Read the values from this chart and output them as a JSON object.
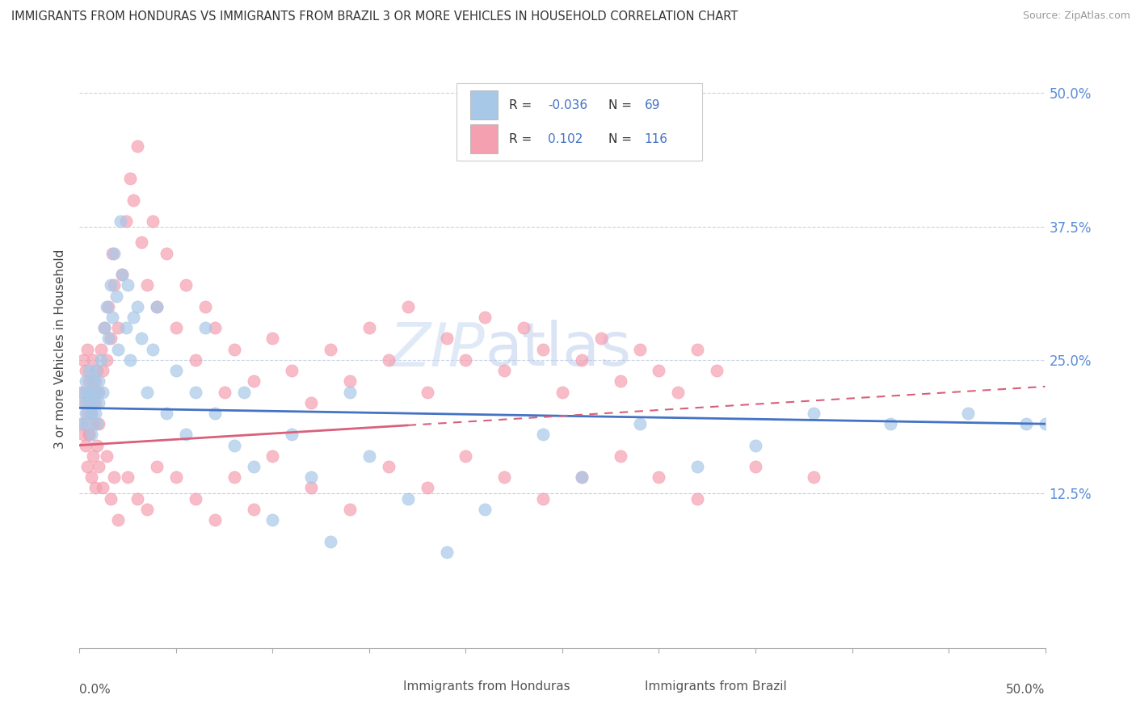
{
  "title": "IMMIGRANTS FROM HONDURAS VS IMMIGRANTS FROM BRAZIL 3 OR MORE VEHICLES IN HOUSEHOLD CORRELATION CHART",
  "source": "Source: ZipAtlas.com",
  "ylabel": "3 or more Vehicles in Household",
  "ytick_values": [
    0.125,
    0.25,
    0.375,
    0.5
  ],
  "ytick_labels": [
    "12.5%",
    "25.0%",
    "37.5%",
    "50.0%"
  ],
  "xmin": 0.0,
  "xmax": 0.5,
  "ymin": -0.02,
  "ymax": 0.54,
  "color_honduras": "#a8c8e8",
  "color_brazil": "#f4a0b0",
  "color_trend_honduras": "#4472c4",
  "color_trend_brazil": "#d9607a",
  "background_color": "#ffffff",
  "grid_color": "#c8d4e8",
  "honduras_x": [
    0.001,
    0.001,
    0.002,
    0.003,
    0.003,
    0.004,
    0.004,
    0.005,
    0.005,
    0.006,
    0.006,
    0.006,
    0.007,
    0.007,
    0.008,
    0.008,
    0.009,
    0.009,
    0.01,
    0.01,
    0.011,
    0.012,
    0.013,
    0.014,
    0.015,
    0.016,
    0.017,
    0.018,
    0.019,
    0.02,
    0.021,
    0.022,
    0.024,
    0.025,
    0.026,
    0.028,
    0.03,
    0.032,
    0.035,
    0.038,
    0.04,
    0.045,
    0.05,
    0.055,
    0.06,
    0.065,
    0.07,
    0.08,
    0.085,
    0.09,
    0.1,
    0.11,
    0.12,
    0.13,
    0.14,
    0.15,
    0.17,
    0.19,
    0.21,
    0.24,
    0.26,
    0.29,
    0.32,
    0.35,
    0.38,
    0.42,
    0.46,
    0.49,
    0.5
  ],
  "honduras_y": [
    0.21,
    0.19,
    0.22,
    0.2,
    0.23,
    0.19,
    0.22,
    0.21,
    0.24,
    0.2,
    0.22,
    0.18,
    0.23,
    0.21,
    0.2,
    0.24,
    0.22,
    0.19,
    0.21,
    0.23,
    0.25,
    0.22,
    0.28,
    0.3,
    0.27,
    0.32,
    0.29,
    0.35,
    0.31,
    0.26,
    0.38,
    0.33,
    0.28,
    0.32,
    0.25,
    0.29,
    0.3,
    0.27,
    0.22,
    0.26,
    0.3,
    0.2,
    0.24,
    0.18,
    0.22,
    0.28,
    0.2,
    0.17,
    0.22,
    0.15,
    0.1,
    0.18,
    0.14,
    0.08,
    0.22,
    0.16,
    0.12,
    0.07,
    0.11,
    0.18,
    0.14,
    0.19,
    0.15,
    0.17,
    0.2,
    0.19,
    0.2,
    0.19,
    0.19
  ],
  "brazil_x": [
    0.001,
    0.001,
    0.002,
    0.002,
    0.003,
    0.003,
    0.004,
    0.004,
    0.005,
    0.005,
    0.006,
    0.006,
    0.007,
    0.007,
    0.008,
    0.008,
    0.009,
    0.01,
    0.01,
    0.011,
    0.012,
    0.013,
    0.014,
    0.015,
    0.016,
    0.017,
    0.018,
    0.02,
    0.022,
    0.024,
    0.026,
    0.028,
    0.03,
    0.032,
    0.035,
    0.038,
    0.04,
    0.045,
    0.05,
    0.055,
    0.06,
    0.065,
    0.07,
    0.075,
    0.08,
    0.09,
    0.1,
    0.11,
    0.12,
    0.13,
    0.14,
    0.15,
    0.16,
    0.17,
    0.18,
    0.19,
    0.2,
    0.21,
    0.22,
    0.23,
    0.24,
    0.25,
    0.26,
    0.27,
    0.28,
    0.29,
    0.3,
    0.31,
    0.32,
    0.33,
    0.003,
    0.004,
    0.005,
    0.006,
    0.007,
    0.008,
    0.009,
    0.01,
    0.012,
    0.014,
    0.016,
    0.018,
    0.02,
    0.025,
    0.03,
    0.035,
    0.04,
    0.05,
    0.06,
    0.07,
    0.08,
    0.09,
    0.1,
    0.12,
    0.14,
    0.16,
    0.18,
    0.2,
    0.22,
    0.24,
    0.26,
    0.28,
    0.3,
    0.32,
    0.35,
    0.38
  ],
  "brazil_y": [
    0.22,
    0.19,
    0.25,
    0.18,
    0.24,
    0.21,
    0.2,
    0.26,
    0.23,
    0.18,
    0.22,
    0.2,
    0.25,
    0.19,
    0.23,
    0.21,
    0.24,
    0.22,
    0.19,
    0.26,
    0.24,
    0.28,
    0.25,
    0.3,
    0.27,
    0.35,
    0.32,
    0.28,
    0.33,
    0.38,
    0.42,
    0.4,
    0.45,
    0.36,
    0.32,
    0.38,
    0.3,
    0.35,
    0.28,
    0.32,
    0.25,
    0.3,
    0.28,
    0.22,
    0.26,
    0.23,
    0.27,
    0.24,
    0.21,
    0.26,
    0.23,
    0.28,
    0.25,
    0.3,
    0.22,
    0.27,
    0.25,
    0.29,
    0.24,
    0.28,
    0.26,
    0.22,
    0.25,
    0.27,
    0.23,
    0.26,
    0.24,
    0.22,
    0.26,
    0.24,
    0.17,
    0.15,
    0.18,
    0.14,
    0.16,
    0.13,
    0.17,
    0.15,
    0.13,
    0.16,
    0.12,
    0.14,
    0.1,
    0.14,
    0.12,
    0.11,
    0.15,
    0.14,
    0.12,
    0.1,
    0.14,
    0.11,
    0.16,
    0.13,
    0.11,
    0.15,
    0.13,
    0.16,
    0.14,
    0.12,
    0.14,
    0.16,
    0.14,
    0.12,
    0.15,
    0.14
  ]
}
